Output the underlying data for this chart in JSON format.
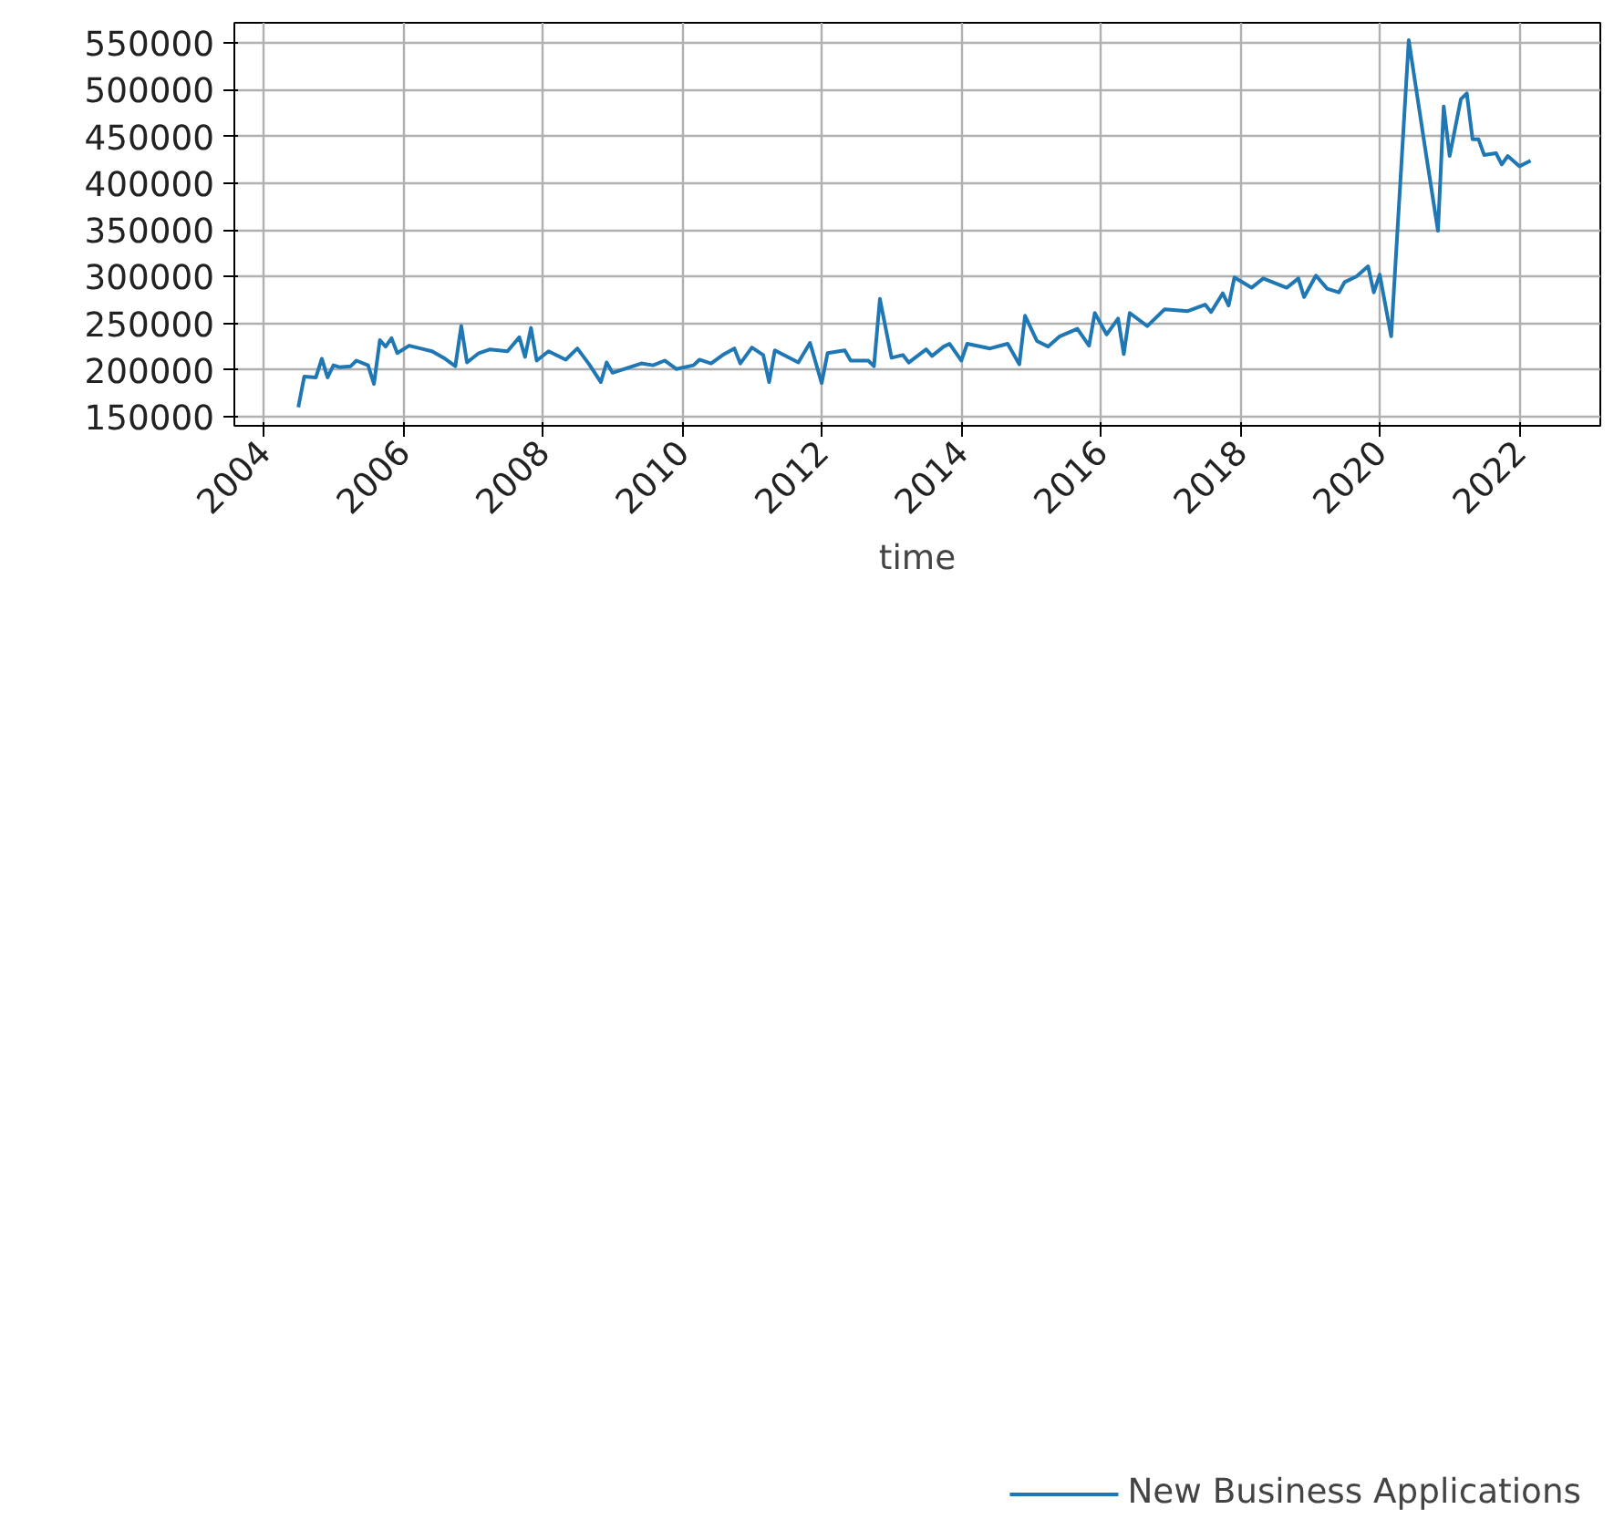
{
  "chart_data": {
    "type": "line",
    "xlabel": "time",
    "xlim": [
      "2003-08",
      "2023-03"
    ],
    "ylim": [
      140200,
      571600
    ],
    "xticks": [
      "2004",
      "2006",
      "2008",
      "2010",
      "2012",
      "2014",
      "2016",
      "2018",
      "2020",
      "2022"
    ],
    "yticks": [
      150000,
      200000,
      250000,
      300000,
      350000,
      400000,
      450000,
      500000,
      550000
    ],
    "grid": true,
    "legend": "bottom",
    "line_style": "solid",
    "marker": "none",
    "x": [
      "2004-07",
      "2004-08",
      "2004-10",
      "2004-11",
      "2004-12",
      "2005-01",
      "2005-02",
      "2005-04",
      "2005-05",
      "2005-07",
      "2005-08",
      "2005-09",
      "2005-10",
      "2005-11",
      "2005-12",
      "2006-02",
      "2006-04",
      "2006-06",
      "2006-08",
      "2006-10",
      "2006-11",
      "2006-12",
      "2007-02",
      "2007-04",
      "2007-07",
      "2007-09",
      "2007-10",
      "2007-11",
      "2007-12",
      "2008-02",
      "2008-05",
      "2008-07",
      "2008-09",
      "2008-11",
      "2008-12",
      "2009-01",
      "2009-06",
      "2009-08",
      "2009-10",
      "2009-12",
      "2010-03",
      "2010-04",
      "2010-06",
      "2010-08",
      "2010-10",
      "2010-11",
      "2011-01",
      "2011-03",
      "2011-04",
      "2011-05",
      "2011-09",
      "2011-11",
      "2012-01",
      "2012-02",
      "2012-05",
      "2012-06",
      "2012-09",
      "2012-10",
      "2012-11",
      "2013-01",
      "2013-03",
      "2013-04",
      "2013-07",
      "2013-08",
      "2013-10",
      "2013-11",
      "2014-01",
      "2014-02",
      "2014-06",
      "2014-09",
      "2014-11",
      "2014-12",
      "2015-02",
      "2015-04",
      "2015-06",
      "2015-09",
      "2015-11",
      "2015-12",
      "2016-02",
      "2016-04",
      "2016-05",
      "2016-06",
      "2016-09",
      "2016-12",
      "2017-04",
      "2017-07",
      "2017-08",
      "2017-10",
      "2017-11",
      "2017-12",
      "2018-03",
      "2018-05",
      "2018-09",
      "2018-11",
      "2018-12",
      "2019-02",
      "2019-04",
      "2019-06",
      "2019-07",
      "2019-09",
      "2019-11",
      "2019-12",
      "2020-01",
      "2020-03",
      "2020-06",
      "2020-09",
      "2020-11",
      "2020-12",
      "2021-01",
      "2021-03",
      "2021-04",
      "2021-05",
      "2021-06",
      "2021-07",
      "2021-09",
      "2021-10",
      "2021-11",
      "2022-01",
      "2022-03"
    ],
    "series": [
      {
        "name": "New Business Applications",
        "color": "#1f77b4",
        "values": [
          160000,
          193000,
          192000,
          212000,
          192000,
          205000,
          203000,
          204000,
          210000,
          205000,
          185000,
          232000,
          225000,
          234000,
          218000,
          226000,
          223000,
          220000,
          213000,
          204000,
          247000,
          208000,
          218000,
          222000,
          220000,
          235000,
          214000,
          245000,
          210000,
          220000,
          211000,
          223000,
          206000,
          187000,
          208000,
          197000,
          207000,
          205000,
          210000,
          201000,
          205000,
          211000,
          207000,
          216000,
          223000,
          207000,
          224000,
          216000,
          187000,
          221000,
          208000,
          229000,
          186000,
          218000,
          221000,
          210000,
          210000,
          204000,
          276000,
          213000,
          216000,
          208000,
          222000,
          215000,
          225000,
          228000,
          210000,
          228000,
          223000,
          228000,
          206000,
          258000,
          231000,
          225000,
          236000,
          244000,
          226000,
          261000,
          238000,
          255000,
          217000,
          261000,
          247000,
          265000,
          263000,
          270000,
          262000,
          282000,
          269000,
          299000,
          288000,
          298000,
          288000,
          298000,
          278000,
          301000,
          287000,
          283000,
          294000,
          300000,
          311000,
          283000,
          302000,
          236000,
          553000,
          429000,
          349000,
          482000,
          429000,
          490000,
          496000,
          447000,
          447000,
          430000,
          432000,
          420000,
          429000,
          418000,
          424000
        ]
      }
    ]
  }
}
